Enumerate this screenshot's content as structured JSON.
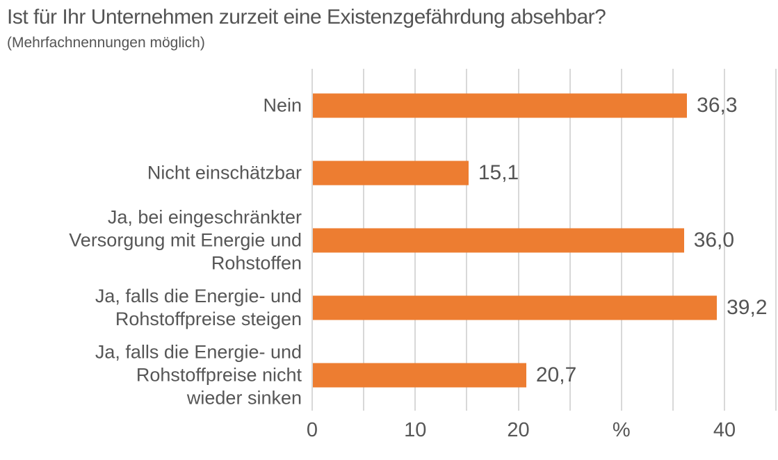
{
  "chart_data": {
    "type": "bar",
    "orientation": "horizontal",
    "title": "Ist für Ihr Unternehmen zurzeit eine Existenzgefährdung absehbar?",
    "subtitle": "(Mehrfachnennungen möglich)",
    "categories": [
      "Nein",
      "Nicht einschätzbar",
      "Ja, bei eingeschränkter Versorgung mit Energie und Rohstoffen",
      "Ja, falls die Energie- und Rohstoffpreise steigen",
      "Ja, falls die Energie- und Rohstoffpreise nicht wieder sinken"
    ],
    "category_lines": [
      [
        "Nein"
      ],
      [
        "Nicht einschätzbar"
      ],
      [
        "Ja, bei eingeschränkter",
        "Versorgung mit Energie und",
        "Rohstoffen"
      ],
      [
        "Ja, falls die Energie- und",
        "Rohstoffpreise steigen"
      ],
      [
        "Ja, falls die Energie- und",
        "Rohstoffpreise nicht",
        "wieder sinken"
      ]
    ],
    "values": [
      36.3,
      15.1,
      36.0,
      39.2,
      20.7
    ],
    "value_labels": [
      "36,3",
      "15,1",
      "36,0",
      "39,2",
      "20,7"
    ],
    "unit": "%",
    "xlim": [
      0,
      45
    ],
    "gridline_step": 5,
    "grid": true,
    "legend": false,
    "x_ticks": [
      {
        "value": 0,
        "label": "0"
      },
      {
        "value": 10,
        "label": "10"
      },
      {
        "value": 20,
        "label": "20"
      },
      {
        "value": 30,
        "label": "%"
      },
      {
        "value": 40,
        "label": "40"
      }
    ],
    "bar_color": "#ED7D31",
    "grid_color": "#D8D8D8",
    "text_color": "#565656"
  }
}
